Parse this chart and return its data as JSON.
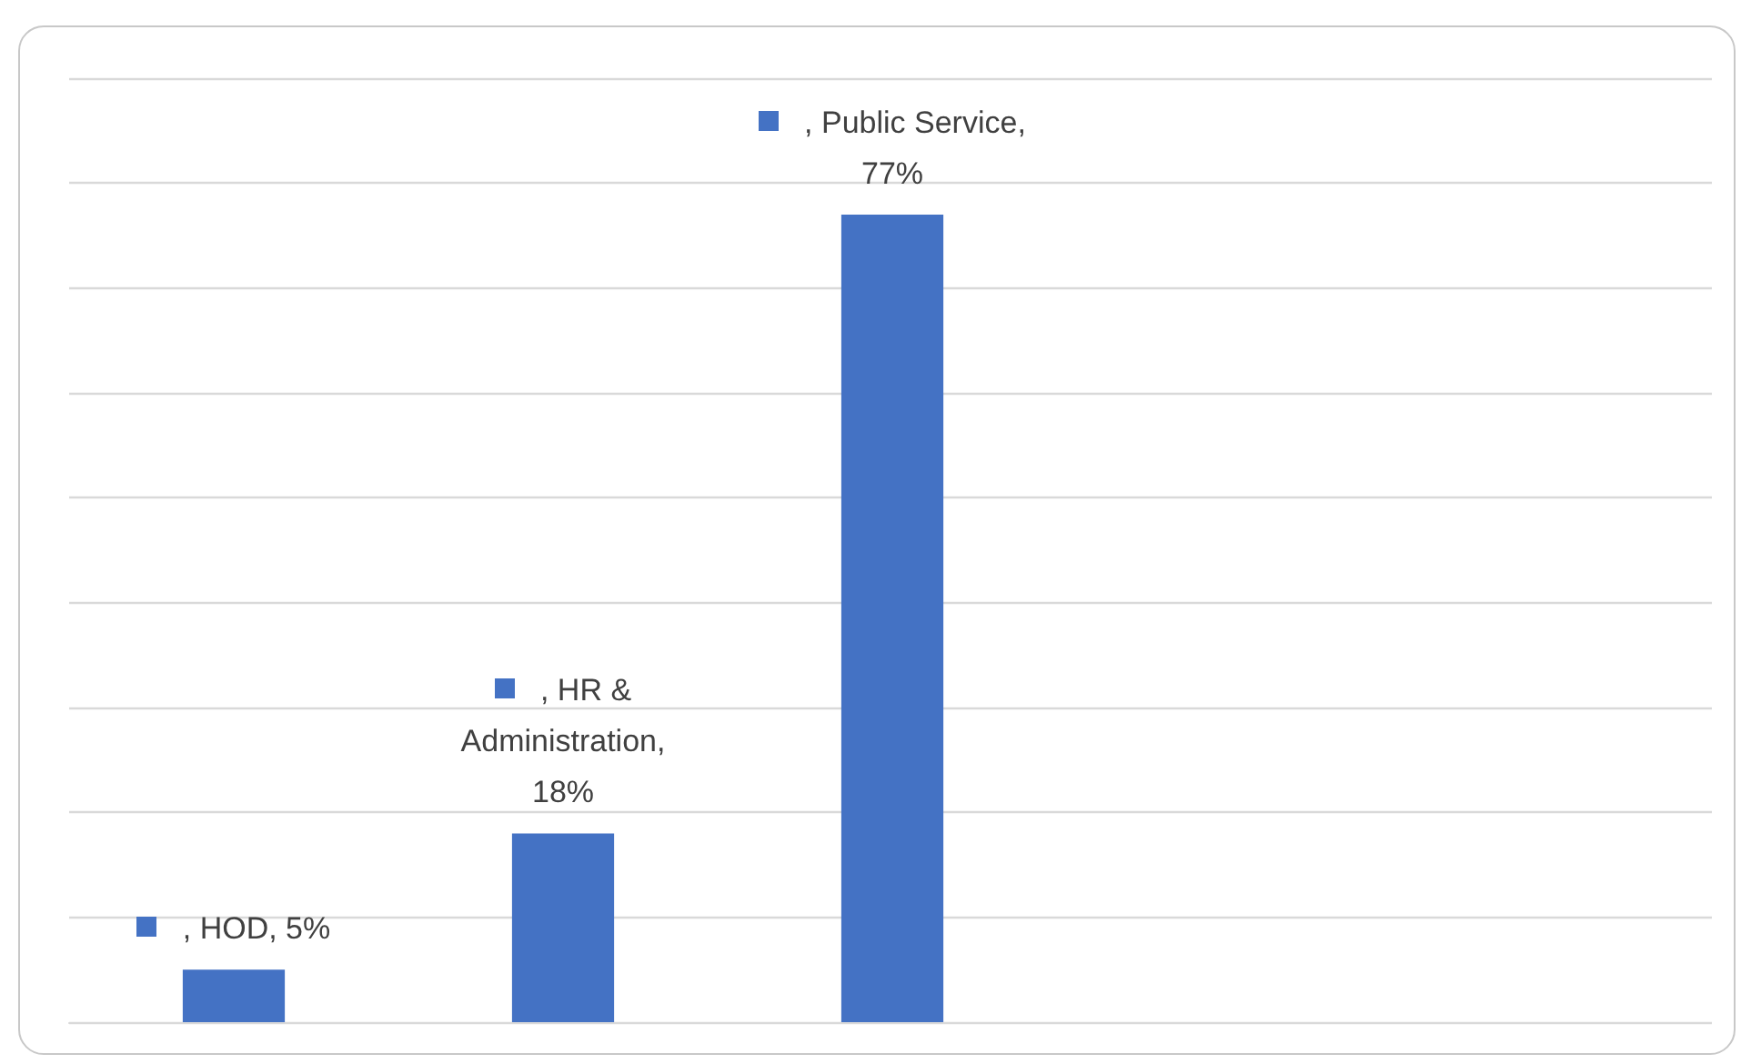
{
  "chart_data": {
    "type": "bar",
    "categories": [
      null,
      null,
      null
    ],
    "values": [
      5,
      18,
      77
    ],
    "value_labels": [
      ", HOD, 5%",
      ", HR & Administration, 18%",
      ", Public Service, 77%"
    ],
    "color": "#4472c4",
    "ylim": [
      0,
      90
    ],
    "yticks": [
      {
        "value": 0,
        "label": null
      },
      {
        "value": 10,
        "label": null
      },
      {
        "value": 20,
        "label": null
      },
      {
        "value": 30,
        "label": null
      },
      {
        "value": 40,
        "label": null
      },
      {
        "value": 50,
        "label": null
      },
      {
        "value": 60,
        "label": null
      },
      {
        "value": 70,
        "label": null
      },
      {
        "value": 80,
        "label": null
      },
      {
        "value": 90,
        "label": null
      }
    ],
    "grid": "y"
  }
}
